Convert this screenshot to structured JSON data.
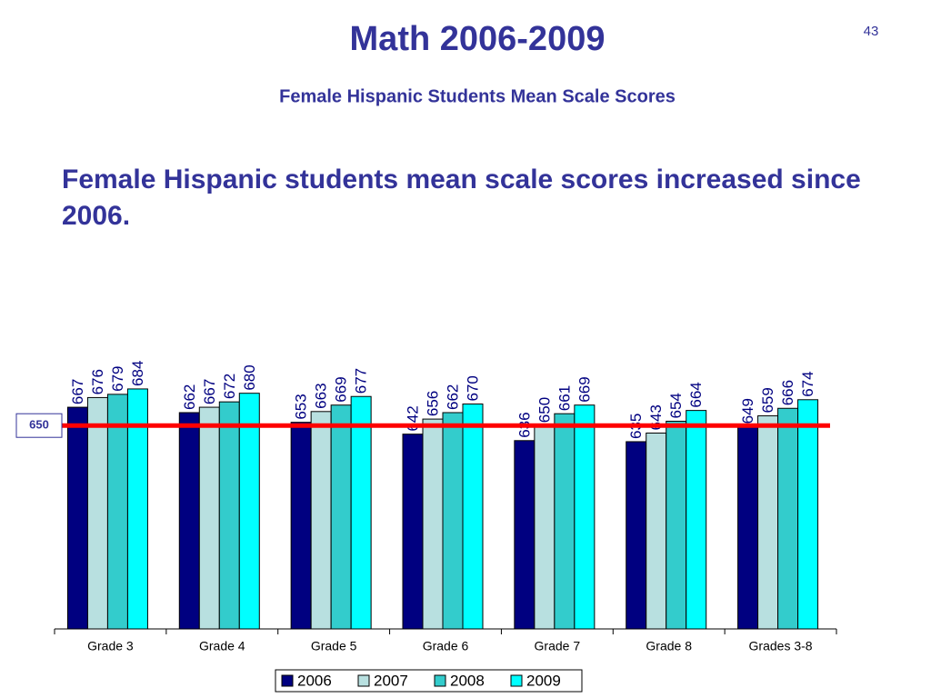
{
  "page_number": "43",
  "chart_data": {
    "type": "bar",
    "title": "Math 2006-2009",
    "subtitle": "Female Hispanic Students Mean Scale Scores",
    "annotation": "Female Hispanic students mean scale scores increased since 2006.",
    "categories": [
      "Grade 3",
      "Grade 4",
      "Grade 5",
      "Grade 6",
      "Grade 7",
      "Grade 8",
      "Grades 3-8"
    ],
    "series": [
      {
        "name": "2006",
        "color": "#000080",
        "values": [
          667,
          662,
          653,
          642,
          636,
          635,
          649
        ]
      },
      {
        "name": "2007",
        "color": "#b8e0e0",
        "values": [
          676,
          667,
          663,
          656,
          650,
          643,
          659
        ]
      },
      {
        "name": "2008",
        "color": "#33cccc",
        "values": [
          679,
          672,
          669,
          662,
          661,
          654,
          666
        ]
      },
      {
        "name": "2009",
        "color": "#00ffff",
        "values": [
          684,
          680,
          677,
          670,
          669,
          664,
          674
        ]
      }
    ],
    "ylim": [
      461,
      700
    ],
    "reference_line": 650,
    "reference_color": "#ff0000",
    "legend": "bottom"
  }
}
